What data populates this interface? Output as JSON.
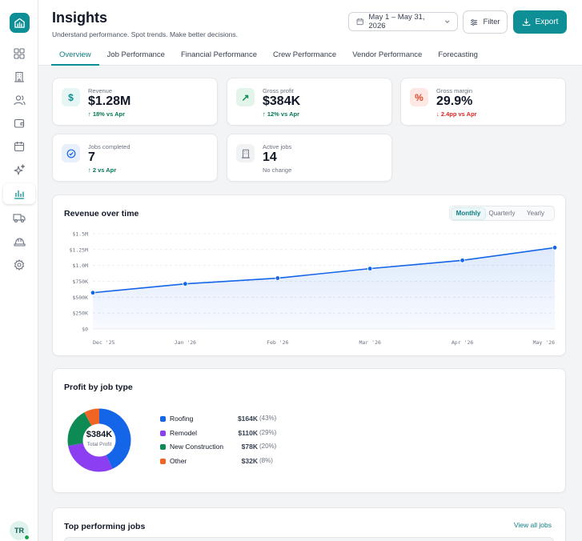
{
  "sidebar": {
    "items": [
      {
        "icon": "logo-icon"
      },
      {
        "icon": "dashboard-icon"
      },
      {
        "icon": "building-icon"
      },
      {
        "icon": "users-icon"
      },
      {
        "icon": "wallet-icon"
      },
      {
        "icon": "calendar-icon"
      },
      {
        "icon": "sparkles-icon"
      },
      {
        "icon": "bar-chart-icon",
        "active": true
      },
      {
        "icon": "truck-icon"
      },
      {
        "icon": "hard-hat-icon"
      },
      {
        "icon": "settings-icon"
      }
    ],
    "user_initials": "TR"
  },
  "header": {
    "title": "Insights",
    "subtitle": "Understand performance. Spot trends. Make better decisions.",
    "date_range": "May 1 – May 31, 2026",
    "filter_label": "Filter",
    "export_label": "Export"
  },
  "tabs": [
    {
      "label": "Overview",
      "active": true
    },
    {
      "label": "Job Performance"
    },
    {
      "label": "Financial Performance"
    },
    {
      "label": "Crew Performance"
    },
    {
      "label": "Vendor Performance"
    },
    {
      "label": "Forecasting"
    }
  ],
  "kpis": [
    {
      "label": "Revenue",
      "value": "$1.28M",
      "delta": "↑ 18% vs Apr",
      "trend": "up",
      "icon": "dollar-icon",
      "icon_text": "$"
    },
    {
      "label": "Gross profit",
      "value": "$384K",
      "delta": "↑ 12% vs Apr",
      "trend": "up",
      "icon": "trend-up-icon",
      "icon_text": "↗"
    },
    {
      "label": "Gross margin",
      "value": "29.9%",
      "delta": "↓ 2.4pp vs Apr",
      "trend": "down",
      "icon": "percent-icon",
      "icon_text": "%"
    },
    {
      "label": "Jobs completed",
      "value": "7",
      "delta": "↑ 2 vs Apr",
      "trend": "up",
      "icon": "check-circle-icon",
      "icon_text": "✓"
    },
    {
      "label": "Active jobs",
      "value": "14",
      "delta": "No change",
      "trend": "neutral",
      "icon": "building-icon",
      "icon_text": "▦"
    }
  ],
  "revenue_chart": {
    "title": "Revenue over time",
    "periods": [
      "Monthly",
      "Quarterly",
      "Yearly"
    ],
    "active_period": "Monthly"
  },
  "chart_data": {
    "type": "area",
    "title": "Revenue over time",
    "x": [
      "Dec '25",
      "Jan '26",
      "Feb '26",
      "Mar '26",
      "Apr '26",
      "May '26"
    ],
    "values": [
      570000,
      710000,
      800000,
      950000,
      1080000,
      1280000
    ],
    "y_ticks": [
      "$0",
      "$250K",
      "$500K",
      "$750K",
      "$1.0M",
      "$1.25M",
      "$1.5M"
    ],
    "ylim": [
      0,
      1500000
    ],
    "grid": true,
    "color": "#1565e8"
  },
  "profit": {
    "title": "Profit by job type",
    "total": "$384K",
    "total_label": "Total Profit",
    "items": [
      {
        "name": "Roofing",
        "value": "$164K",
        "pct": "(43%)",
        "share": 43,
        "color": "#1565e8"
      },
      {
        "name": "Remodel",
        "value": "$110K",
        "pct": "(29%)",
        "share": 29,
        "color": "#8b3ff0"
      },
      {
        "name": "New Construction",
        "value": "$78K",
        "pct": "(20%)",
        "share": 20,
        "color": "#0e8a55"
      },
      {
        "name": "Other",
        "value": "$32K",
        "pct": "(8%)",
        "share": 8,
        "color": "#f06424"
      }
    ]
  },
  "top_jobs": {
    "title": "Top performing jobs",
    "view_all": "View all jobs"
  }
}
